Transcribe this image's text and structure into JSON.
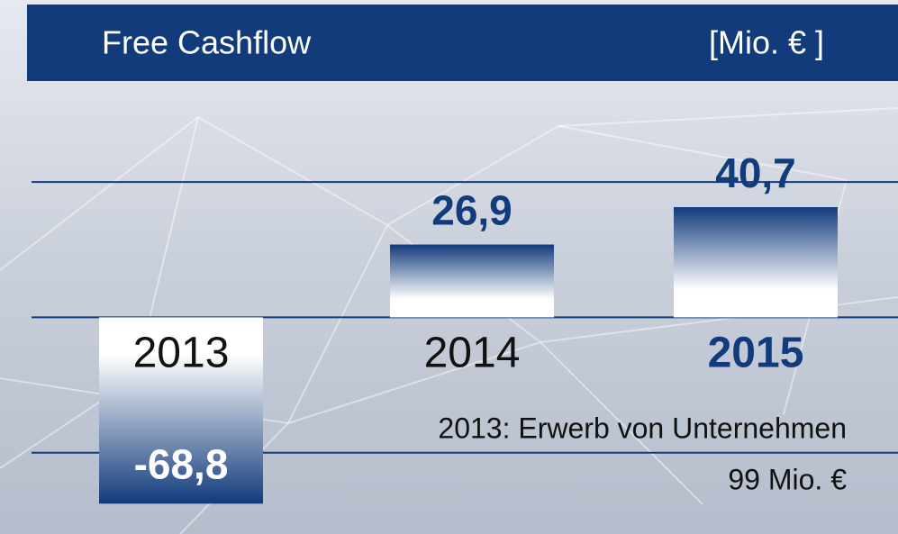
{
  "chart_data": {
    "type": "bar",
    "title": "Free Cashflow",
    "unit_label": "[Mio. € ]",
    "categories": [
      "2013",
      "2014",
      "2015"
    ],
    "values": [
      -68.8,
      26.9,
      40.7
    ],
    "value_labels": [
      "-68,8",
      "26,9",
      "40,7"
    ],
    "color": "#123b7c",
    "category_colors": [
      "#111111",
      "#111111",
      "#123b7c"
    ],
    "ylim": [
      -80,
      62
    ],
    "yticks": [
      -50,
      0,
      50
    ],
    "grid": true,
    "annotations": [
      "2013: Erwerb von Unternehmen",
      "99 Mio. €"
    ]
  }
}
